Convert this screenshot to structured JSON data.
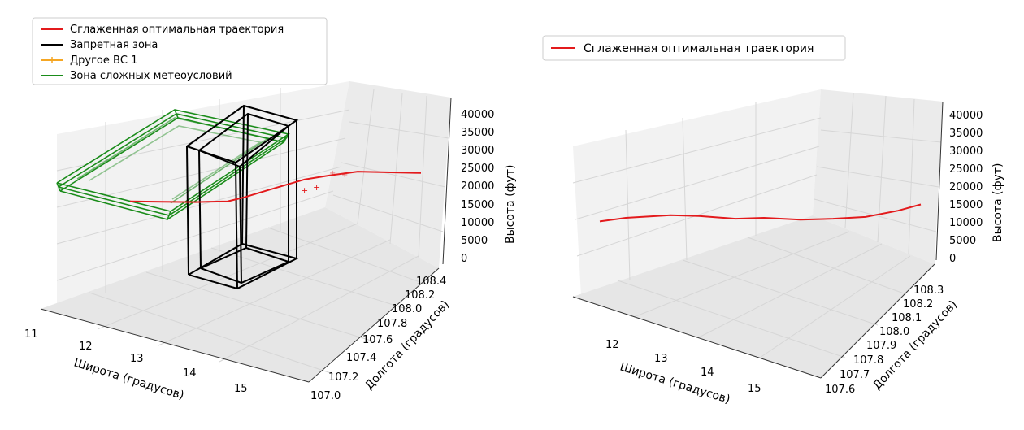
{
  "chart_data": [
    {
      "type": "line",
      "projection": "3d",
      "xlabel": "Широта (градусов)",
      "ylabel": "Долгота (градусов)",
      "zlabel": "Высота (фут)",
      "x_ticks": [
        "11",
        "12",
        "13",
        "14",
        "15"
      ],
      "y_ticks": [
        "107.0",
        "107.2",
        "107.4",
        "107.6",
        "107.8",
        "108.0",
        "108.2",
        "108.4"
      ],
      "z_ticks": [
        "0",
        "5000",
        "10000",
        "15000",
        "20000",
        "25000",
        "30000",
        "35000",
        "40000"
      ],
      "legend_position": "top-left",
      "legend": [
        {
          "label": "Сглаженная оптимальная траектория",
          "color": "#e31a1c",
          "marker": "none"
        },
        {
          "label": "Запретная зона",
          "color": "#000000",
          "marker": "none"
        },
        {
          "label": "Другое ВС 1",
          "color": "#f5a623",
          "marker": "plus"
        },
        {
          "label": "Зона сложных метеоусловий",
          "color": "#1a8c1a",
          "marker": "none"
        }
      ],
      "series": [
        {
          "name": "Сглаженная оптимальная траектория",
          "color": "#e31a1c",
          "x": [
            11.8,
            12.3,
            12.8,
            13.2,
            13.5,
            13.8,
            14.1,
            14.5,
            14.9,
            15.3,
            15.7
          ],
          "y": [
            108.3,
            108.2,
            108.1,
            108.0,
            107.9,
            107.8,
            107.7,
            107.6,
            107.5,
            107.3,
            107.1
          ],
          "z": [
            12000,
            11000,
            10000,
            9500,
            10500,
            12000,
            14000,
            16500,
            17500,
            18500,
            17000
          ]
        }
      ]
    },
    {
      "type": "line",
      "projection": "3d",
      "xlabel": "Широта (градусов)",
      "ylabel": "Долгота (градусов)",
      "zlabel": "Высота (фут)",
      "x_ticks": [
        "12",
        "13",
        "14",
        "15"
      ],
      "y_ticks": [
        "107.6",
        "107.7",
        "107.8",
        "107.9",
        "108.0",
        "108.1",
        "108.2",
        "108.3"
      ],
      "z_ticks": [
        "0",
        "5000",
        "10000",
        "15000",
        "20000",
        "25000",
        "30000",
        "35000",
        "40000"
      ],
      "legend_position": "top-left",
      "legend": [
        {
          "label": "Сглаженная оптимальная траектория",
          "color": "#e31a1c",
          "marker": "none"
        }
      ],
      "series": [
        {
          "name": "Сглаженная оптимальная траектория",
          "color": "#e31a1c",
          "x": [
            11.8,
            12.2,
            12.6,
            13.0,
            13.4,
            13.8,
            14.2,
            14.6,
            15.0,
            15.4,
            15.8
          ],
          "y": [
            108.3,
            108.25,
            108.2,
            108.1,
            108.05,
            108.0,
            107.9,
            107.85,
            107.8,
            107.7,
            107.6
          ],
          "z": [
            8000,
            10000,
            11500,
            11000,
            9500,
            10000,
            9000,
            9500,
            10500,
            14000,
            17500
          ]
        }
      ]
    }
  ]
}
